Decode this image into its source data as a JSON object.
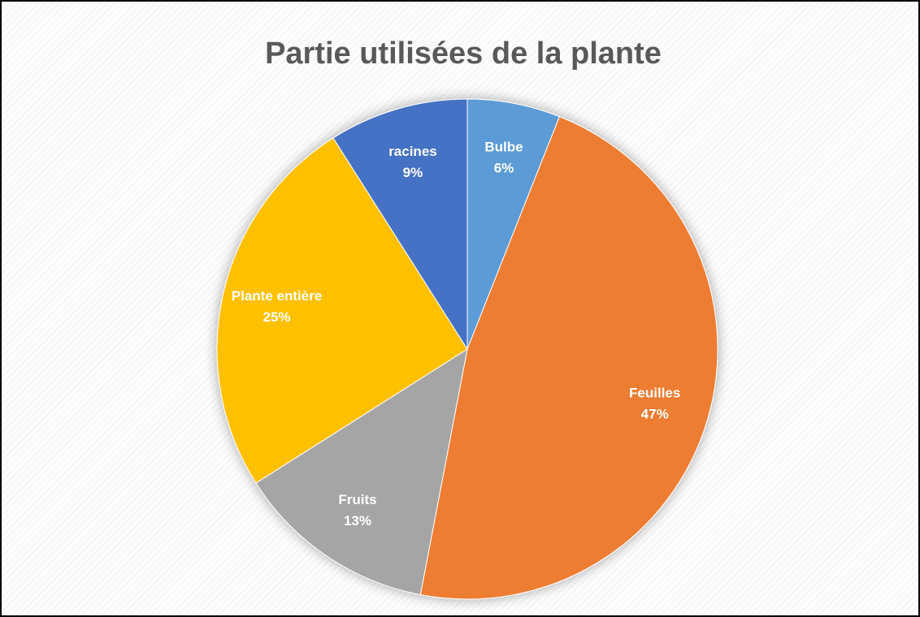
{
  "chart_data": {
    "type": "pie",
    "title": "Partie utilisées de la plante",
    "categories": [
      "Bulbe",
      "Feuilles",
      "Fruits",
      "Plante entière",
      "racines"
    ],
    "values": [
      6,
      47,
      13,
      25,
      9
    ],
    "value_labels": [
      "6%",
      "47%",
      "13%",
      "25%",
      "9%"
    ],
    "colors": [
      "#5b9bd5",
      "#ed7d31",
      "#a5a5a5",
      "#ffc000",
      "#4472c4"
    ]
  }
}
